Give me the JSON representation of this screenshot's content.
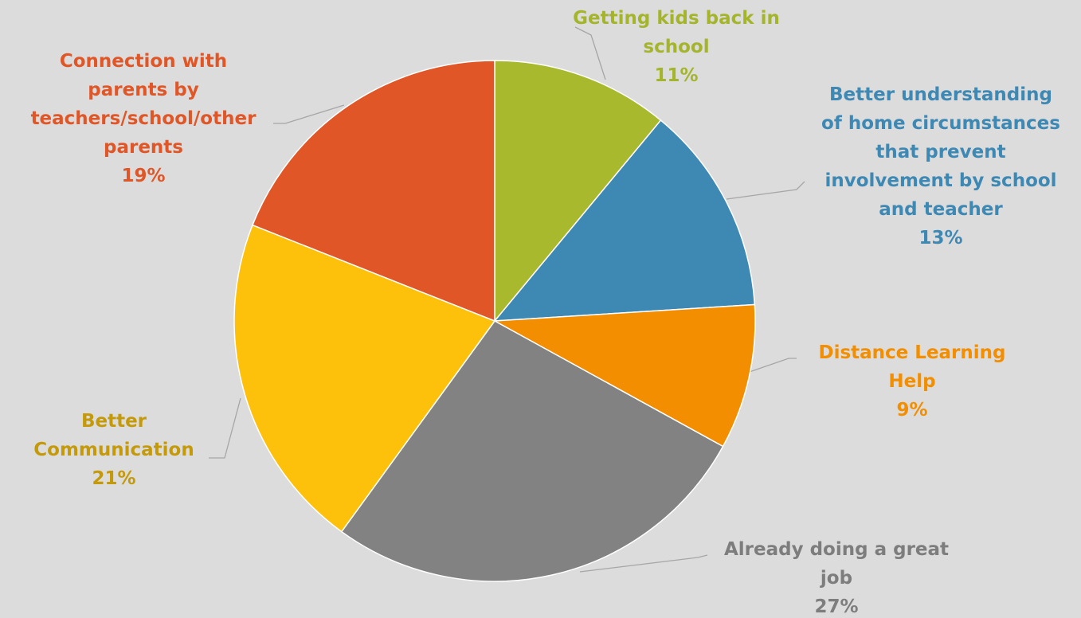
{
  "chart_data": {
    "type": "pie",
    "start_angle_deg": 0,
    "direction": "clockwise",
    "legend": "none",
    "slices": [
      {
        "label": "Getting kids back in school",
        "label_lines": [
          "Getting kids back in",
          "school"
        ],
        "value": 11,
        "value_label": "11%",
        "color": "#a8b92d",
        "label_color": "#a4b52c"
      },
      {
        "label": "Better understanding of home circumstances that prevent involvement by school and teacher",
        "label_lines": [
          "Better understanding",
          "of home circumstances",
          "that prevent",
          "involvement by school",
          "and teacher"
        ],
        "value": 13,
        "value_label": "13%",
        "color": "#3e88b4",
        "label_color": "#3e88b4"
      },
      {
        "label": "Distance Learning Help",
        "label_lines": [
          "Distance Learning",
          "Help"
        ],
        "value": 9,
        "value_label": "9%",
        "color": "#f28e00",
        "label_color": "#f28e00"
      },
      {
        "label": "Already doing a great job",
        "label_lines": [
          "Already doing a great",
          "job"
        ],
        "value": 27,
        "value_label": "27%",
        "color": "#828282",
        "label_color": "#7d7d7d"
      },
      {
        "label": "Better Communication",
        "label_lines": [
          "Better",
          "Communication"
        ],
        "value": 21,
        "value_label": "21%",
        "color": "#fdc10c",
        "label_color": "#c49a0a"
      },
      {
        "label": "Connection with parents by teachers/school/other parents",
        "label_lines": [
          "Connection with",
          "parents by",
          "teachers/school/other",
          "parents"
        ],
        "value": 19,
        "value_label": "19%",
        "color": "#e05627",
        "label_color": "#e05627"
      }
    ]
  }
}
